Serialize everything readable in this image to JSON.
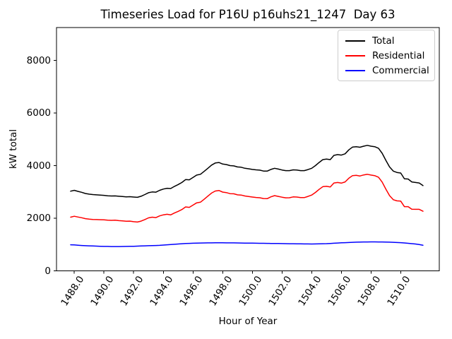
{
  "figure": {
    "background": "#ffffff"
  },
  "chart_data": {
    "type": "line",
    "title": "Timeseries Load for P16U p16uhs21_1247  Day 63",
    "xlabel": "Hour of Year",
    "ylabel": "kW total",
    "xlim": [
      1486.8,
      1512.6
    ],
    "ylim": [
      0,
      9250
    ],
    "grid": false,
    "legend_position": "upper right",
    "xticks": [
      1488,
      1490,
      1492,
      1494,
      1496,
      1498,
      1500,
      1502,
      1504,
      1506,
      1508,
      1510
    ],
    "xtick_labels": [
      "1488.0",
      "1490.0",
      "1492.0",
      "1494.0",
      "1496.0",
      "1498.0",
      "1500.0",
      "1502.0",
      "1504.0",
      "1506.0",
      "1508.0",
      "1510.0"
    ],
    "yticks": [
      0,
      2000,
      4000,
      6000,
      8000
    ],
    "ytick_labels": [
      "0",
      "2000",
      "4000",
      "6000",
      "8000"
    ],
    "x_hours": {
      "start": 1487.75,
      "step": 0.25,
      "count": 96
    },
    "series": [
      {
        "name": "Total",
        "color": "#000000",
        "values": [
          3030,
          3060,
          3020,
          2985,
          2940,
          2915,
          2900,
          2890,
          2880,
          2870,
          2855,
          2845,
          2850,
          2835,
          2825,
          2815,
          2820,
          2805,
          2795,
          2835,
          2900,
          2970,
          3000,
          2990,
          3060,
          3110,
          3140,
          3130,
          3210,
          3280,
          3360,
          3470,
          3460,
          3550,
          3640,
          3670,
          3780,
          3900,
          4020,
          4100,
          4120,
          4060,
          4040,
          4000,
          3990,
          3950,
          3940,
          3900,
          3880,
          3855,
          3840,
          3830,
          3795,
          3790,
          3855,
          3900,
          3870,
          3835,
          3810,
          3810,
          3840,
          3835,
          3810,
          3810,
          3850,
          3900,
          4000,
          4120,
          4230,
          4250,
          4230,
          4390,
          4420,
          4400,
          4450,
          4600,
          4705,
          4720,
          4700,
          4740,
          4770,
          4740,
          4720,
          4660,
          4470,
          4200,
          3950,
          3790,
          3740,
          3720,
          3500,
          3490,
          3380,
          3360,
          3340,
          3240
        ]
      },
      {
        "name": "Residential",
        "color": "#ff0000",
        "values": [
          2040,
          2075,
          2045,
          2020,
          1985,
          1965,
          1955,
          1950,
          1945,
          1940,
          1925,
          1920,
          1925,
          1910,
          1900,
          1885,
          1890,
          1870,
          1855,
          1890,
          1950,
          2015,
          2040,
          2025,
          2090,
          2130,
          2150,
          2130,
          2200,
          2260,
          2330,
          2430,
          2415,
          2500,
          2585,
          2610,
          2720,
          2840,
          2955,
          3035,
          3055,
          2995,
          2975,
          2935,
          2930,
          2890,
          2880,
          2845,
          2825,
          2805,
          2790,
          2780,
          2750,
          2745,
          2815,
          2860,
          2830,
          2800,
          2775,
          2780,
          2810,
          2805,
          2785,
          2785,
          2830,
          2880,
          2980,
          3095,
          3200,
          3215,
          3190,
          3340,
          3360,
          3335,
          3380,
          3520,
          3620,
          3630,
          3605,
          3645,
          3670,
          3640,
          3620,
          3560,
          3375,
          3105,
          2860,
          2705,
          2660,
          2650,
          2440,
          2440,
          2345,
          2340,
          2340,
          2265
        ]
      },
      {
        "name": "Commercial",
        "color": "#0000ff",
        "values": [
          990,
          985,
          975,
          965,
          955,
          950,
          945,
          940,
          935,
          930,
          928,
          925,
          925,
          925,
          927,
          930,
          932,
          935,
          940,
          945,
          950,
          955,
          960,
          965,
          970,
          980,
          990,
          1000,
          1010,
          1020,
          1030,
          1040,
          1045,
          1050,
          1055,
          1058,
          1060,
          1062,
          1063,
          1065,
          1065,
          1065,
          1064,
          1063,
          1062,
          1060,
          1058,
          1056,
          1054,
          1052,
          1050,
          1048,
          1046,
          1044,
          1042,
          1040,
          1038,
          1036,
          1034,
          1032,
          1030,
          1028,
          1026,
          1024,
          1022,
          1020,
          1022,
          1025,
          1030,
          1035,
          1042,
          1050,
          1058,
          1065,
          1072,
          1078,
          1084,
          1090,
          1094,
          1097,
          1099,
          1100,
          1100,
          1099,
          1097,
          1094,
          1090,
          1085,
          1078,
          1070,
          1060,
          1048,
          1035,
          1020,
          1000,
          975
        ]
      }
    ]
  }
}
